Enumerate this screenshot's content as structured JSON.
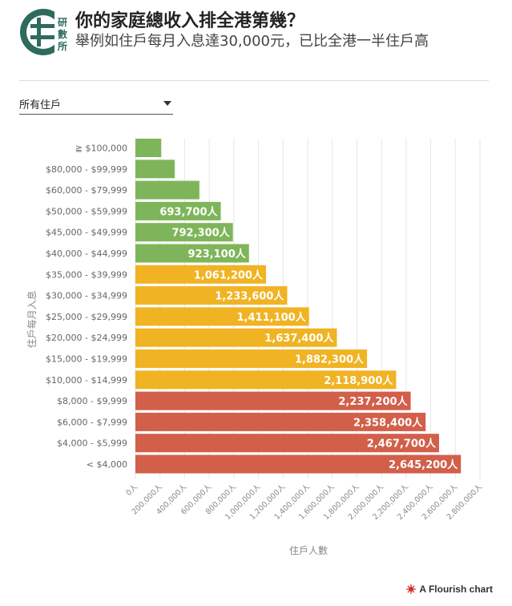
{
  "header": {
    "title": "你的家庭總收入排全港第幾？",
    "subtitle": "舉例如住戶每月入息達30,000元，已比全港一半住戶高",
    "logo_text": "研數所"
  },
  "filter": {
    "selected": "所有住戶"
  },
  "footer": {
    "credit": "A Flourish chart"
  },
  "colors": {
    "high": "#7fb55a",
    "middle": "#f0b323",
    "low": "#d25f4a"
  },
  "chart_data": {
    "type": "bar",
    "orientation": "horizontal",
    "ylabel": "住戶每月入息",
    "xlabel": "住戶人數",
    "xlim": [
      0,
      2800000
    ],
    "xticks": [
      "0人",
      "200,000人",
      "400,000人",
      "600,000人",
      "800,000人",
      "1,000,000人",
      "1,200,000人",
      "1,400,000人",
      "1,600,000人",
      "1,800,000人",
      "2,000,000人",
      "2,200,000人",
      "2,400,000人",
      "2,600,000人",
      "2,800,000人"
    ],
    "categories": [
      "≧ $100,000",
      "$80,000 - $99,999",
      "$60,000 - $79,999",
      "$50,000 - $59,999",
      "$45,000 - $49,999",
      "$40,000 - $44,999",
      "$35,000 - $39,999",
      "$30,000 - $34,999",
      "$25,000 - $29,999",
      "$20,000 - $24,999",
      "$15,000 - $19,999",
      "$10,000 - $14,999",
      "$8,000 - $9,999",
      "$6,000 - $7,999",
      "$4,000 - $5,999",
      "< $4,000"
    ],
    "values": [
      210000,
      320000,
      520000,
      693700,
      792300,
      923100,
      1061200,
      1233600,
      1411100,
      1637400,
      1882300,
      2118900,
      2237200,
      2358400,
      2467700,
      2645200
    ],
    "labels": [
      "",
      "",
      "",
      "693,700人",
      "792,300人",
      "923,100人",
      "1,061,200人",
      "1,233,600人",
      "1,411,100人",
      "1,637,400人",
      "1,882,300人",
      "2,118,900人",
      "2,237,200人",
      "2,358,400人",
      "2,467,700人",
      "2,645,200人"
    ],
    "groups": [
      "high",
      "high",
      "high",
      "high",
      "high",
      "high",
      "middle",
      "middle",
      "middle",
      "middle",
      "middle",
      "middle",
      "low",
      "low",
      "low",
      "low"
    ],
    "grid": true
  }
}
